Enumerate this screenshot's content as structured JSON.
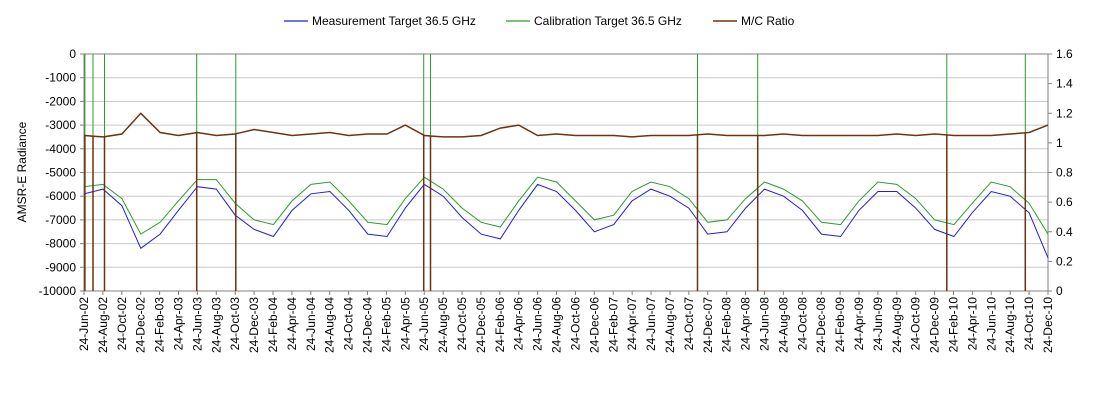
{
  "chart_data": {
    "type": "line",
    "title": "",
    "xlabel": "",
    "ylabel": "AMSR-E Radiance",
    "ylim": [
      -10000,
      0
    ],
    "y_ticks": [
      0,
      -1000,
      -2000,
      -3000,
      -4000,
      -5000,
      -6000,
      -7000,
      -8000,
      -9000,
      -10000
    ],
    "y_tick_labels": [
      "0",
      "-1000",
      "-2000",
      "-3000",
      "-4000",
      "-5000",
      "-6000",
      "-7000",
      "-8000",
      "-9000",
      "-10000"
    ],
    "y2lim": [
      0,
      1.6
    ],
    "y2_ticks": [
      1.6,
      1.4,
      1.2,
      1.0,
      0.8,
      0.6,
      0.4,
      0.2,
      0
    ],
    "y2_tick_labels": [
      "1.6",
      "1.4",
      "1.2",
      "1",
      "0.8",
      "0.6",
      "0.4",
      "0.2",
      "0"
    ],
    "x_range": [
      "2002-06-24",
      "2010-12-24"
    ],
    "x_tick_labels": [
      "24-Jun-02",
      "24-Aug-02",
      "24-Oct-02",
      "24-Dec-02",
      "24-Feb-03",
      "24-Apr-03",
      "24-Jun-03",
      "24-Aug-03",
      "24-Oct-03",
      "24-Dec-03",
      "24-Feb-04",
      "24-Apr-04",
      "24-Jun-04",
      "24-Aug-04",
      "24-Oct-04",
      "24-Dec-04",
      "24-Feb-05",
      "24-Apr-05",
      "24-Jun-05",
      "24-Aug-05",
      "24-Oct-05",
      "24-Dec-05",
      "24-Feb-06",
      "24-Apr-06",
      "24-Jun-06",
      "24-Aug-06",
      "24-Oct-06",
      "24-Dec-06",
      "24-Feb-07",
      "24-Apr-07",
      "24-Jun-07",
      "24-Aug-07",
      "24-Oct-07",
      "24-Dec-07",
      "24-Feb-08",
      "24-Apr-08",
      "24-Jun-08",
      "24-Aug-08",
      "24-Oct-08",
      "24-Dec-08",
      "24-Feb-09",
      "24-Apr-09",
      "24-Jun-09",
      "24-Aug-09",
      "24-Oct-09",
      "24-Dec-09",
      "24-Feb-10",
      "24-Apr-10",
      "24-Jun-10",
      "24-Aug-10",
      "24-Oct-10",
      "24-Dec-10"
    ],
    "grid": "horizontal",
    "legend_position": "top",
    "series": [
      {
        "name": "Measurement Target 36.5 GHz",
        "axis": "left",
        "color": "#1f1fd6",
        "x": [
          "2002-06-24",
          "2002-08-24",
          "2002-10-24",
          "2002-12-24",
          "2003-02-24",
          "2003-04-24",
          "2003-06-24",
          "2003-08-24",
          "2003-10-24",
          "2003-12-24",
          "2004-02-24",
          "2004-04-24",
          "2004-06-24",
          "2004-08-24",
          "2004-10-24",
          "2004-12-24",
          "2005-02-24",
          "2005-04-24",
          "2005-06-24",
          "2005-08-24",
          "2005-10-24",
          "2005-12-24",
          "2006-02-24",
          "2006-04-24",
          "2006-06-24",
          "2006-08-24",
          "2006-10-24",
          "2006-12-24",
          "2007-02-24",
          "2007-04-24",
          "2007-06-24",
          "2007-08-24",
          "2007-10-24",
          "2007-12-24",
          "2008-02-24",
          "2008-04-24",
          "2008-06-24",
          "2008-08-24",
          "2008-10-24",
          "2008-12-24",
          "2009-02-24",
          "2009-04-24",
          "2009-06-24",
          "2009-08-24",
          "2009-10-24",
          "2009-12-24",
          "2010-02-24",
          "2010-04-24",
          "2010-06-24",
          "2010-08-24",
          "2010-10-24",
          "2010-12-24"
        ],
        "y": [
          -5900,
          -5700,
          -6400,
          -8200,
          -7600,
          -6600,
          -5600,
          -5700,
          -6800,
          -7400,
          -7700,
          -6600,
          -5900,
          -5800,
          -6600,
          -7600,
          -7700,
          -6500,
          -5500,
          -6000,
          -6900,
          -7600,
          -7800,
          -6600,
          -5500,
          -5800,
          -6600,
          -7500,
          -7200,
          -6200,
          -5700,
          -6000,
          -6500,
          -7600,
          -7500,
          -6500,
          -5700,
          -6000,
          -6600,
          -7600,
          -7700,
          -6600,
          -5800,
          -5800,
          -6500,
          -7400,
          -7700,
          -6700,
          -5800,
          -6000,
          -6700,
          -8600
        ]
      },
      {
        "name": "Calibration Target 36.5 GHz",
        "axis": "left",
        "color": "#2e9a2e",
        "x": [
          "2002-06-24",
          "2002-08-24",
          "2002-10-24",
          "2002-12-24",
          "2003-02-24",
          "2003-04-24",
          "2003-06-24",
          "2003-08-24",
          "2003-10-24",
          "2003-12-24",
          "2004-02-24",
          "2004-04-24",
          "2004-06-24",
          "2004-08-24",
          "2004-10-24",
          "2004-12-24",
          "2005-02-24",
          "2005-04-24",
          "2005-06-24",
          "2005-08-24",
          "2005-10-24",
          "2005-12-24",
          "2006-02-24",
          "2006-04-24",
          "2006-06-24",
          "2006-08-24",
          "2006-10-24",
          "2006-12-24",
          "2007-02-24",
          "2007-04-24",
          "2007-06-24",
          "2007-08-24",
          "2007-10-24",
          "2007-12-24",
          "2008-02-24",
          "2008-04-24",
          "2008-06-24",
          "2008-08-24",
          "2008-10-24",
          "2008-12-24",
          "2009-02-24",
          "2009-04-24",
          "2009-06-24",
          "2009-08-24",
          "2009-10-24",
          "2009-12-24",
          "2010-02-24",
          "2010-04-24",
          "2010-06-24",
          "2010-08-24",
          "2010-10-24",
          "2010-12-24"
        ],
        "y": [
          -5600,
          -5500,
          -6100,
          -7600,
          -7100,
          -6200,
          -5300,
          -5300,
          -6300,
          -7000,
          -7200,
          -6200,
          -5500,
          -5400,
          -6200,
          -7100,
          -7200,
          -6100,
          -5200,
          -5700,
          -6500,
          -7100,
          -7300,
          -6200,
          -5200,
          -5400,
          -6200,
          -7000,
          -6800,
          -5800,
          -5400,
          -5600,
          -6100,
          -7100,
          -7000,
          -6100,
          -5400,
          -5700,
          -6200,
          -7100,
          -7200,
          -6200,
          -5400,
          -5500,
          -6100,
          -7000,
          -7200,
          -6300,
          -5400,
          -5600,
          -6300,
          -7600
        ]
      },
      {
        "name": "M/C Ratio",
        "axis": "right",
        "color": "#6b3410",
        "x": [
          "2002-06-24",
          "2002-08-24",
          "2002-10-24",
          "2002-12-24",
          "2003-02-24",
          "2003-04-24",
          "2003-06-24",
          "2003-08-24",
          "2003-10-24",
          "2003-12-24",
          "2004-02-24",
          "2004-04-24",
          "2004-06-24",
          "2004-08-24",
          "2004-10-24",
          "2004-12-24",
          "2005-02-24",
          "2005-04-24",
          "2005-06-24",
          "2005-08-24",
          "2005-10-24",
          "2005-12-24",
          "2006-02-24",
          "2006-04-24",
          "2006-06-24",
          "2006-08-24",
          "2006-10-24",
          "2006-12-24",
          "2007-02-24",
          "2007-04-24",
          "2007-06-24",
          "2007-08-24",
          "2007-10-24",
          "2007-12-24",
          "2008-02-24",
          "2008-04-24",
          "2008-06-24",
          "2008-08-24",
          "2008-10-24",
          "2008-12-24",
          "2009-02-24",
          "2009-04-24",
          "2009-06-24",
          "2009-08-24",
          "2009-10-24",
          "2009-12-24",
          "2010-02-24",
          "2010-04-24",
          "2010-06-24",
          "2010-08-24",
          "2010-10-24",
          "2010-12-24"
        ],
        "y": [
          1.05,
          1.04,
          1.06,
          1.2,
          1.07,
          1.05,
          1.07,
          1.05,
          1.06,
          1.09,
          1.07,
          1.05,
          1.06,
          1.07,
          1.05,
          1.06,
          1.06,
          1.12,
          1.05,
          1.04,
          1.04,
          1.05,
          1.1,
          1.12,
          1.05,
          1.06,
          1.05,
          1.05,
          1.05,
          1.04,
          1.05,
          1.05,
          1.05,
          1.06,
          1.05,
          1.05,
          1.05,
          1.06,
          1.05,
          1.05,
          1.05,
          1.05,
          1.05,
          1.06,
          1.05,
          1.06,
          1.05,
          1.05,
          1.05,
          1.06,
          1.07,
          1.12
        ]
      }
    ],
    "dropouts": [
      "2002-06-27",
      "2002-07-23",
      "2002-08-29",
      "2003-06-22",
      "2003-10-26",
      "2005-06-22",
      "2005-07-14",
      "2007-11-21",
      "2008-06-02",
      "2010-02-01",
      "2010-10-12"
    ]
  }
}
